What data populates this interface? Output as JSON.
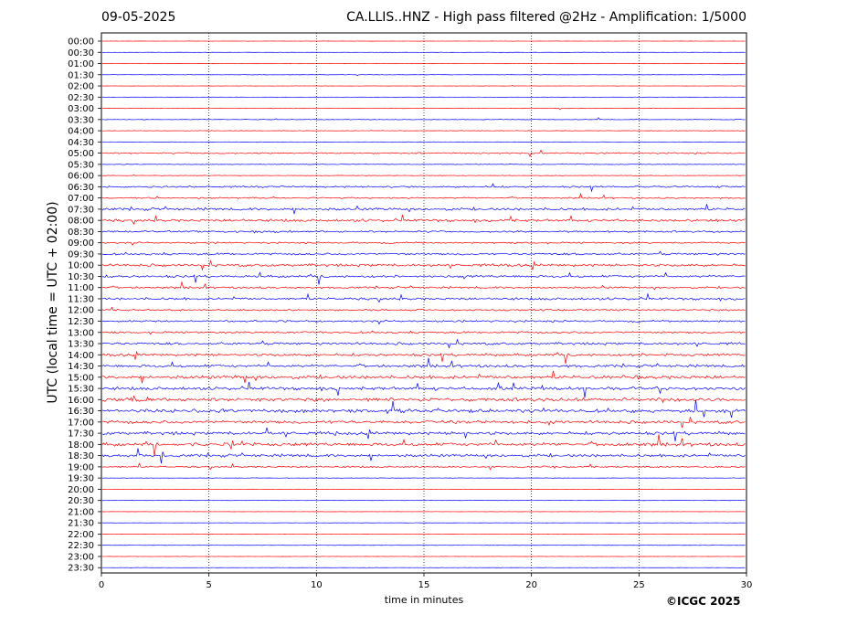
{
  "header": {
    "date": "09-05-2025",
    "title": "CA.LLIS..HNZ - High pass filtered @2Hz - Amplification: 1/5000"
  },
  "footer": {
    "credit": "©ICGC 2025"
  },
  "chart_data": {
    "type": "line",
    "title": "CA.LLIS..HNZ - High pass filtered @2Hz - Amplification: 1/5000",
    "date": "09-05-2025",
    "xlabel": "time in minutes",
    "ylabel": "UTC (local time = UTC + 02:00)",
    "xlim": [
      0,
      30
    ],
    "x_ticks": [
      0,
      5,
      10,
      15,
      20,
      25,
      30
    ],
    "x_gridlines": [
      5,
      10,
      15,
      20,
      25
    ],
    "trace_colors": [
      "#ff0000",
      "#0000ff"
    ],
    "rows": [
      "00:00",
      "00:30",
      "01:00",
      "01:30",
      "02:00",
      "02:30",
      "03:00",
      "03:30",
      "04:00",
      "04:30",
      "05:00",
      "05:30",
      "06:00",
      "06:30",
      "07:00",
      "07:30",
      "08:00",
      "08:30",
      "09:00",
      "09:30",
      "10:00",
      "10:30",
      "11:00",
      "11:30",
      "12:00",
      "12:30",
      "13:00",
      "13:30",
      "14:00",
      "14:30",
      "15:00",
      "15:30",
      "16:00",
      "16:30",
      "17:00",
      "17:30",
      "18:00",
      "18:30",
      "19:00",
      "19:30",
      "20:00",
      "20:30",
      "21:00",
      "21:30",
      "22:00",
      "22:30",
      "23:00",
      "23:30"
    ],
    "activity_level": [
      0.05,
      0.05,
      0.05,
      0.08,
      0.05,
      0.05,
      0.1,
      0.12,
      0.1,
      0.05,
      0.3,
      0.12,
      0.1,
      0.35,
      0.3,
      0.55,
      0.55,
      0.4,
      0.35,
      0.45,
      0.55,
      0.5,
      0.4,
      0.5,
      0.35,
      0.4,
      0.45,
      0.5,
      0.55,
      0.55,
      0.7,
      0.65,
      0.75,
      0.75,
      0.65,
      0.65,
      0.7,
      0.6,
      0.35,
      0.08,
      0.05,
      0.05,
      0.05,
      0.05,
      0.05,
      0.05,
      0.05,
      0.05
    ]
  }
}
